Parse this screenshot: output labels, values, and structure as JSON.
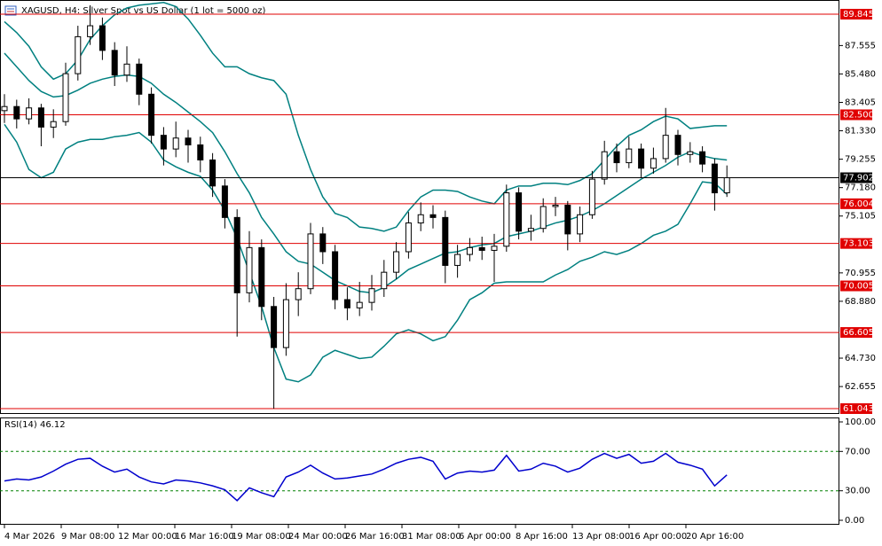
{
  "chart_data": [
    {
      "type": "candlestick",
      "title": "XAGUSD, H4:  Silver Spot vs US Dollar (1 lot = 5000 oz)",
      "up_color": "#ffffff",
      "down_color": "#000000",
      "wick_color": "#000000",
      "open": [
        82.8,
        83.1,
        82.2,
        83.0,
        81.6,
        82.0,
        85.5,
        88.2,
        89.0,
        87.2,
        85.4,
        86.2,
        84.0,
        81.0,
        80.0,
        80.8,
        80.3,
        79.2,
        77.3,
        75.0,
        69.5,
        72.8,
        68.5,
        65.5,
        69.0,
        69.8,
        73.8,
        72.5,
        69.0,
        68.4,
        68.8,
        69.8,
        71.0,
        72.5,
        74.6,
        75.2,
        75.0,
        71.5,
        72.3,
        72.8,
        72.6,
        72.9,
        76.8,
        74.0,
        74.2,
        75.8,
        75.9,
        73.8,
        75.2,
        77.8,
        79.8,
        79.0,
        80.0,
        78.6,
        79.3,
        81.0,
        79.6,
        79.8,
        78.9,
        76.8
      ],
      "high": [
        84.0,
        83.6,
        83.7,
        83.3,
        82.9,
        86.3,
        89.0,
        90.5,
        89.6,
        87.8,
        87.5,
        86.6,
        84.5,
        81.6,
        82.0,
        81.4,
        80.9,
        79.7,
        77.8,
        75.6,
        74.0,
        73.4,
        69.2,
        70.2,
        71.0,
        74.6,
        74.3,
        73.0,
        69.9,
        70.3,
        70.8,
        71.9,
        73.2,
        75.4,
        76.1,
        75.9,
        75.5,
        73.0,
        73.5,
        73.6,
        73.8,
        77.4,
        77.2,
        75.2,
        76.4,
        76.5,
        76.2,
        75.8,
        78.4,
        80.6,
        80.4,
        80.9,
        80.4,
        80.1,
        83.0,
        81.4,
        80.5,
        80.2,
        79.3,
        78.8
      ],
      "low": [
        81.9,
        81.5,
        81.8,
        80.2,
        80.8,
        81.7,
        85.0,
        87.6,
        86.5,
        84.6,
        84.9,
        83.2,
        80.4,
        78.8,
        79.4,
        79.0,
        78.3,
        76.5,
        74.2,
        66.3,
        68.8,
        67.5,
        61.043,
        64.9,
        67.8,
        69.4,
        71.6,
        68.3,
        67.5,
        67.8,
        68.2,
        69.2,
        70.5,
        72.0,
        74.0,
        74.2,
        70.2,
        70.6,
        71.8,
        71.9,
        70.3,
        72.5,
        73.4,
        73.3,
        73.9,
        75.1,
        72.6,
        73.2,
        74.9,
        77.4,
        78.3,
        78.6,
        77.9,
        78.2,
        79.0,
        78.8,
        79.0,
        78.3,
        75.5,
        76.5
      ],
      "close": [
        83.1,
        82.2,
        83.0,
        81.6,
        82.0,
        85.5,
        88.2,
        89.0,
        87.2,
        85.4,
        86.2,
        84.0,
        81.0,
        80.0,
        80.8,
        80.3,
        79.2,
        77.3,
        75.0,
        69.5,
        72.8,
        68.5,
        65.5,
        69.0,
        69.8,
        73.8,
        72.5,
        69.0,
        68.4,
        68.8,
        69.8,
        71.0,
        72.5,
        74.6,
        75.2,
        75.0,
        71.5,
        72.3,
        72.8,
        72.6,
        72.9,
        76.8,
        74.0,
        74.2,
        75.8,
        75.9,
        73.8,
        75.2,
        77.8,
        79.8,
        79.0,
        80.0,
        78.6,
        79.3,
        81.0,
        79.6,
        79.8,
        78.9,
        76.8,
        77.902
      ],
      "bands": {
        "color": "#008080",
        "upper": [
          89.3,
          88.5,
          87.5,
          86.0,
          85.1,
          85.5,
          86.5,
          88.0,
          89.0,
          89.8,
          90.3,
          90.5,
          90.6,
          90.7,
          90.4,
          89.5,
          88.3,
          87.0,
          86.0,
          86.0,
          85.5,
          85.2,
          85.0,
          84.0,
          81.0,
          78.5,
          76.5,
          75.3,
          75.0,
          74.3,
          74.2,
          74.0,
          74.3,
          75.5,
          76.5,
          77.0,
          77.0,
          76.9,
          76.5,
          76.2,
          76.0,
          77.0,
          77.3,
          77.3,
          77.5,
          77.5,
          77.4,
          77.7,
          78.2,
          79.2,
          80.2,
          81.0,
          81.4,
          82.0,
          82.4,
          82.2,
          81.5,
          81.6,
          81.7,
          81.7
        ],
        "middle": [
          87.0,
          86.0,
          85.0,
          84.2,
          83.8,
          83.9,
          84.3,
          84.8,
          85.1,
          85.3,
          85.4,
          85.3,
          84.8,
          84.0,
          83.4,
          82.7,
          82.0,
          81.2,
          79.8,
          78.2,
          76.8,
          75.0,
          73.8,
          72.5,
          71.8,
          71.6,
          71.0,
          70.4,
          70.0,
          69.6,
          69.5,
          69.9,
          70.5,
          71.2,
          71.6,
          72.0,
          72.4,
          72.5,
          72.8,
          73.0,
          73.1,
          73.6,
          73.8,
          74.0,
          74.3,
          74.6,
          74.8,
          75.1,
          75.5,
          76.0,
          76.6,
          77.2,
          77.8,
          78.3,
          78.8,
          79.4,
          79.8,
          79.5,
          79.3,
          79.2
        ],
        "lower": [
          81.8,
          80.5,
          78.5,
          77.9,
          78.3,
          80.0,
          80.5,
          80.7,
          80.7,
          80.9,
          81.0,
          81.2,
          80.5,
          79.2,
          78.7,
          78.3,
          78.0,
          77.0,
          75.5,
          73.5,
          71.0,
          68.5,
          65.5,
          63.2,
          63.0,
          63.5,
          64.8,
          65.3,
          65.0,
          64.7,
          64.8,
          65.6,
          66.5,
          66.8,
          66.5,
          66.0,
          66.3,
          67.5,
          69.0,
          69.5,
          70.2,
          70.3,
          70.3,
          70.3,
          70.3,
          70.8,
          71.2,
          71.8,
          72.1,
          72.5,
          72.3,
          72.6,
          73.1,
          73.7,
          74.0,
          74.5,
          76.0,
          77.6,
          77.5,
          76.7
        ]
      },
      "ylim": [
        60.655,
        90.88
      ],
      "yticks": [
        87.555,
        {
          "value": 85.48,
          "label": "85.480"
        },
        83.405,
        {
          "value": 81.33,
          "label": "81.330"
        },
        79.255,
        {
          "value": 77.18,
          "label": "77.180"
        },
        75.105,
        70.955,
        {
          "value": 68.88,
          "label": "68.880"
        },
        {
          "value": 64.73,
          "label": "64.730"
        },
        62.655
      ],
      "levels": [
        89.845,
        {
          "value": 82.5,
          "label": "82.500"
        },
        76.004,
        73.103,
        70.005,
        66.605,
        61.043
      ],
      "level_color": "#e00000",
      "current_price": 77.902
    },
    {
      "type": "line",
      "title": "RSI(14) 46.12",
      "color": "#0000cd",
      "values": [
        40,
        42,
        41,
        44,
        50,
        57,
        62,
        63,
        55,
        49,
        52,
        44,
        39,
        37,
        41,
        40,
        38,
        35,
        31,
        20,
        33,
        28,
        24,
        44,
        49,
        56,
        48,
        42,
        43,
        45,
        47,
        52,
        58,
        62,
        64,
        60,
        42,
        48,
        50,
        49,
        51,
        66,
        50,
        52,
        58,
        55,
        49,
        53,
        62,
        68,
        63,
        67,
        58,
        60,
        68,
        59,
        56,
        52,
        35,
        46.12
      ],
      "ylim": [
        -4.5,
        108.1
      ],
      "yticks": [
        {
          "value": 100,
          "label": "100.00"
        },
        {
          "value": 70,
          "label": "70.00"
        },
        {
          "value": 30,
          "label": "30.00"
        },
        {
          "value": 0,
          "label": "0.00"
        }
      ],
      "levels": [
        70,
        30
      ],
      "level_color": "#008000",
      "time_labels": [
        "4 Mar 2026",
        "9 Mar 08:00",
        "12 Mar 00:00",
        "16 Mar 16:00",
        "19 Mar 08:00",
        "24 Mar 00:00",
        "26 Mar 16:00",
        "31 Mar 08:00",
        "6 Apr 00:00",
        "8 Apr 16:00",
        "13 Apr 08:00",
        "16 Apr 00:00",
        "20 Apr 16:00"
      ]
    }
  ]
}
